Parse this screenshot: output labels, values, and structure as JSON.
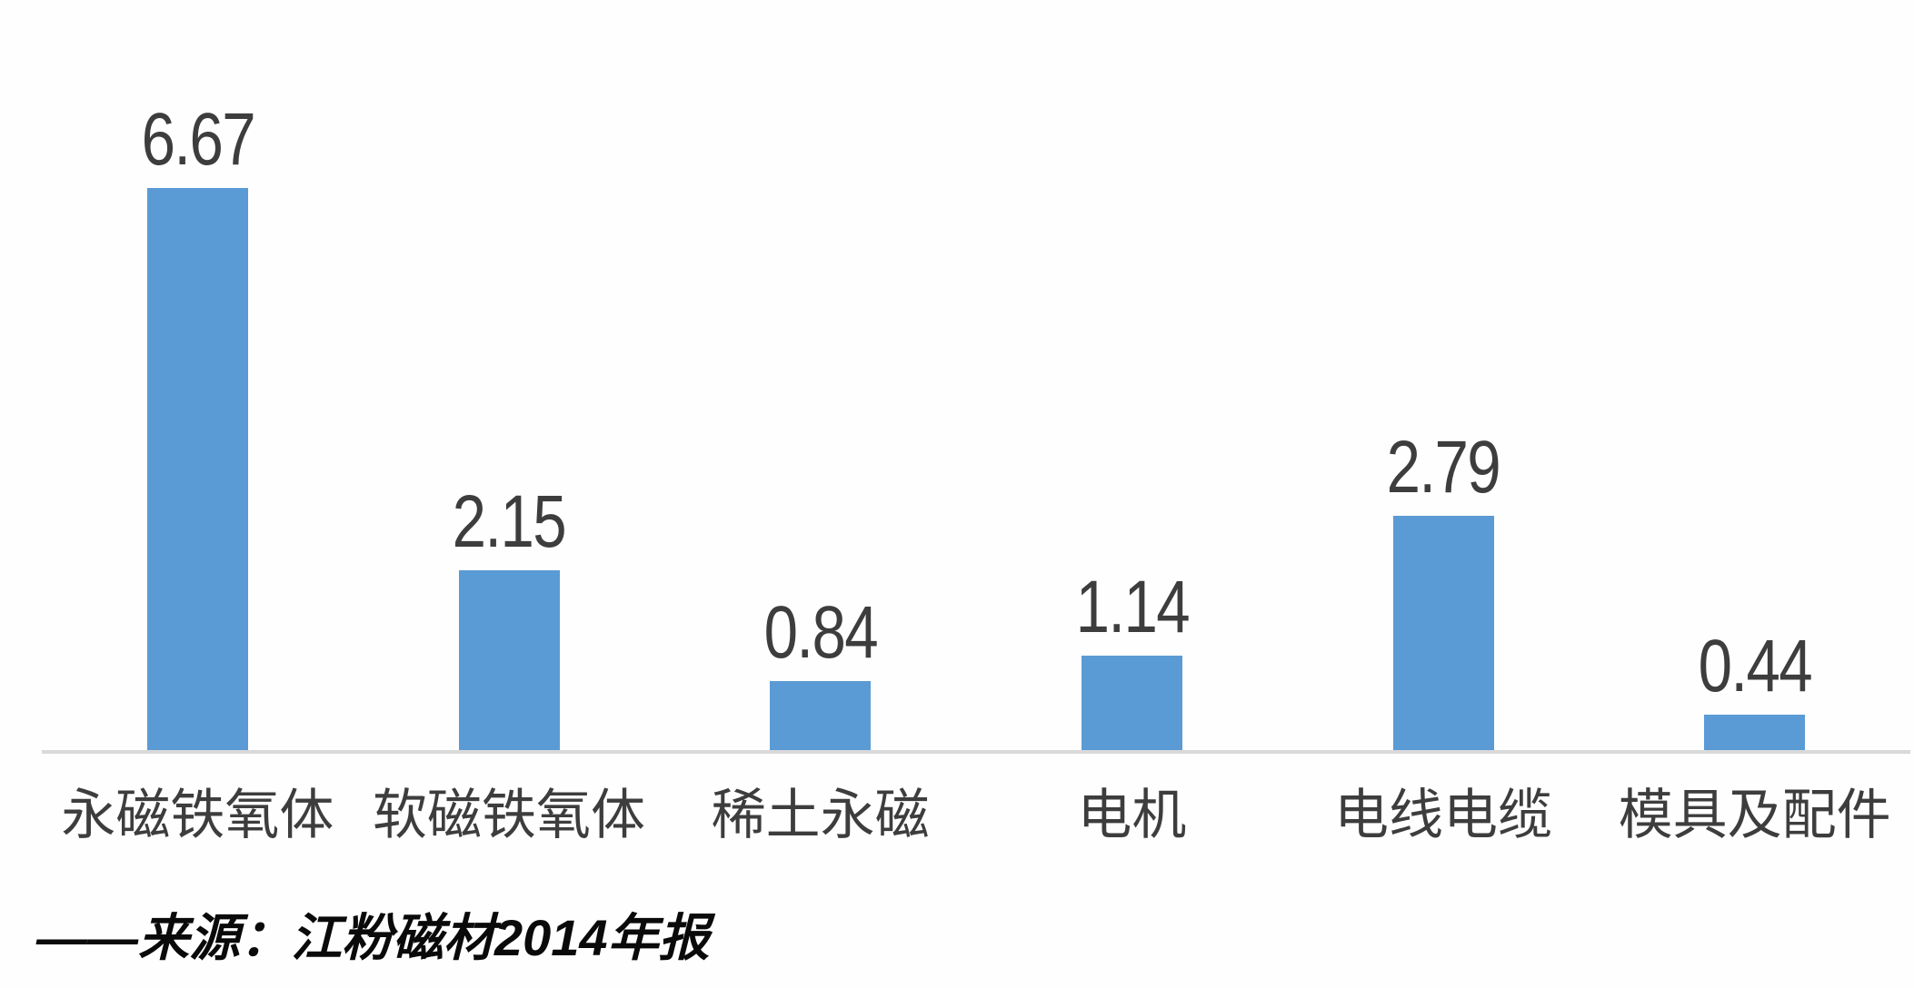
{
  "chart_data": {
    "type": "bar",
    "categories": [
      "永磁铁氧体",
      "软磁铁氧体",
      "稀土永磁",
      "电机",
      "电线电缆",
      "模具及配件"
    ],
    "values": [
      6.67,
      2.15,
      0.84,
      1.14,
      2.79,
      0.44
    ],
    "value_labels": [
      "6.67",
      "2.15",
      "0.84",
      "1.14",
      "2.79",
      "0.44"
    ],
    "title": "",
    "xlabel": "",
    "ylabel": "",
    "ylim": [
      0,
      8.9
    ],
    "grid": false,
    "legend_position": "none",
    "data_labels": "above-bars",
    "bar_color": "#5B9BD5",
    "axis_line_color": "#D9D9D9",
    "label_color": "#3D3D3D",
    "source_note": "——来源：江粉磁材2014年报"
  }
}
